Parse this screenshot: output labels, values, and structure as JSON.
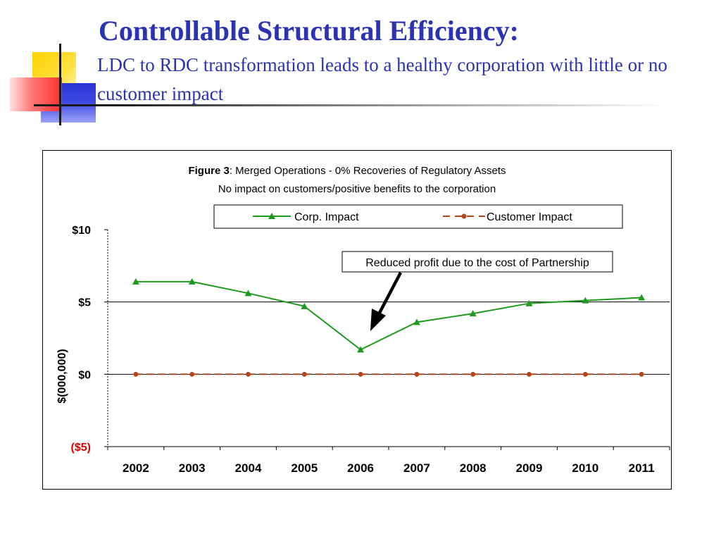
{
  "slide": {
    "title": "Controllable Structural Efficiency:",
    "subtitle": "LDC to RDC transformation leads to a healthy corporation with little or no customer impact"
  },
  "colors": {
    "title": "#2b33b0",
    "corp_series": "#1f9a1f",
    "customer_series": "#b5471b",
    "negative_tick": "#e00000",
    "axis": "#000000"
  },
  "chart_data": {
    "type": "line",
    "title_prefix": "Figure 3",
    "title_rest": ": Merged Operations - 0% Recoveries of Regulatory Assets",
    "subtitle": "No impact on customers/positive benefits to the corporation",
    "ylabel": "$(000,000)",
    "xlabel": "",
    "x": [
      "2002",
      "2003",
      "2004",
      "2005",
      "2006",
      "2007",
      "2008",
      "2009",
      "2010",
      "2011"
    ],
    "ylim": [
      -5,
      10
    ],
    "yticks": [
      {
        "value": 10,
        "label": "$10"
      },
      {
        "value": 5,
        "label": "$5"
      },
      {
        "value": 0,
        "label": "$0"
      },
      {
        "value": -5,
        "label": "($5)"
      }
    ],
    "gridlines": [
      5,
      0
    ],
    "legend_position": "top",
    "series": [
      {
        "name": "Corp. Impact",
        "marker": "triangle",
        "line_style": "solid",
        "values": [
          6.4,
          6.4,
          5.6,
          4.7,
          1.7,
          3.6,
          4.2,
          4.9,
          5.1,
          5.3
        ]
      },
      {
        "name": "Customer Impact",
        "marker": "circle",
        "line_style": "dashed",
        "values": [
          0,
          0,
          0,
          0,
          0,
          0,
          0,
          0,
          0,
          0
        ]
      }
    ],
    "annotations": [
      {
        "text": "Reduced profit due to the cost of Partnership",
        "points_to": "2006"
      }
    ]
  }
}
